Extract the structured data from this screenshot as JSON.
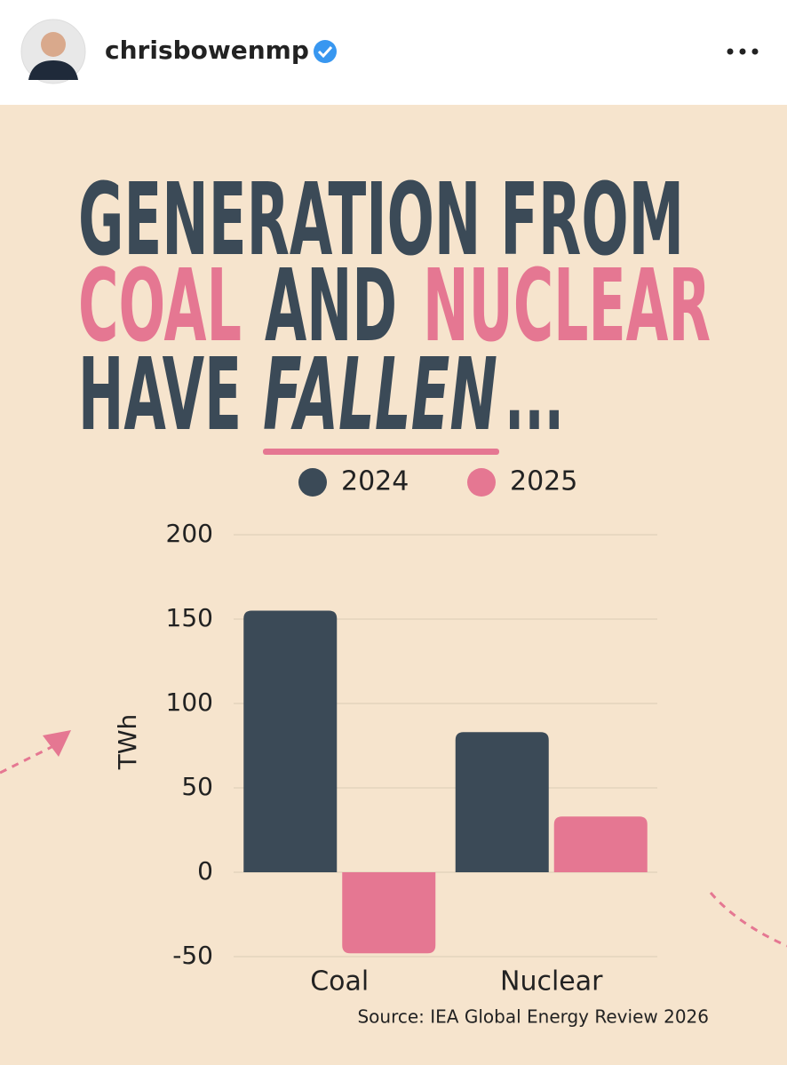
{
  "header": {
    "username": "chrisbowenmp"
  },
  "chart_data": {
    "type": "bar",
    "title_segments": [
      {
        "text": "GENERATION FROM",
        "color": "#3b4a57"
      },
      {
        "text": "COAL",
        "color": "#e57792"
      },
      {
        "text": "AND",
        "color": "#3b4a57"
      },
      {
        "text": "NUCLEAR",
        "color": "#e57792"
      },
      {
        "text": "HAVE",
        "color": "#3b4a57"
      },
      {
        "text": "FALLEN",
        "color": "#3b4a57"
      },
      {
        "text": "...",
        "color": "#3b4a57"
      }
    ],
    "categories": [
      "Coal",
      "Nuclear"
    ],
    "series": [
      {
        "name": "2024",
        "color": "#3b4a57",
        "values": [
          155,
          83
        ]
      },
      {
        "name": "2025",
        "color": "#e57792",
        "values": [
          -48,
          33
        ]
      }
    ],
    "ylabel": "TWh",
    "ylim": [
      -50,
      200
    ],
    "yticks": [
      -50,
      0,
      50,
      100,
      150,
      200
    ],
    "grid": true,
    "source": "Source: IEA Global Energy Review 2026"
  }
}
